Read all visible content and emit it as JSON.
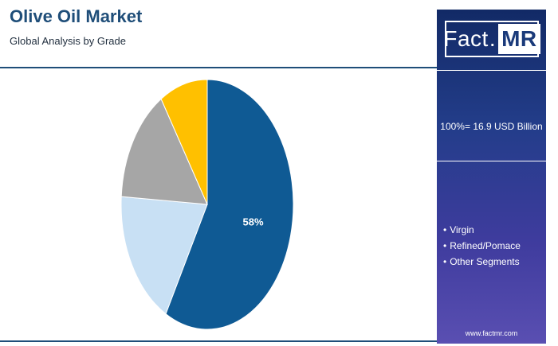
{
  "header": {
    "title": "Olive Oil Market",
    "subtitle": "Global Analysis by Grade"
  },
  "side_panel": {
    "logo_left": "Fact",
    "logo_right": "MR",
    "total_label": "100%= 16.9 USD Billion",
    "legend": [
      "Virgin",
      "Refined/Pomace",
      "Other Segments"
    ],
    "website": "www.factmr.com"
  },
  "chart_data": {
    "type": "pie",
    "title": "Olive Oil Market",
    "subtitle": "Global Analysis by Grade",
    "slices": [
      {
        "label": "Virgin",
        "value": 58,
        "color": "#0f5a94",
        "data_label": "58%"
      },
      {
        "label": "Refined/Pomace",
        "value": 18,
        "color": "#c8e0f4",
        "data_label": ""
      },
      {
        "label": "Other Segments",
        "value": 15,
        "color": "#a6a6a6",
        "data_label": ""
      },
      {
        "label": "",
        "value": 9,
        "color": "#ffc000",
        "data_label": ""
      }
    ],
    "legend_position": "right",
    "total": "100%= 16.9 USD Billion"
  },
  "colors": {
    "title": "#1f4e79",
    "rule": "#1f4e79",
    "panel_top": "#122a66",
    "panel_bottom": "#5a4fb2"
  }
}
